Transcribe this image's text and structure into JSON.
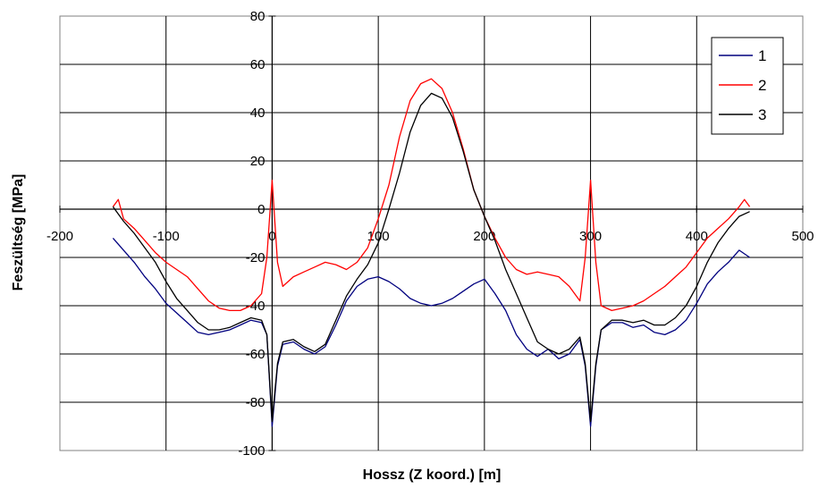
{
  "chart_data": {
    "type": "line",
    "xlabel": "Hossz (Z koord.) [m]",
    "ylabel": "Feszültség [MPa]",
    "xlim": [
      -200,
      500
    ],
    "ylim": [
      -100,
      80
    ],
    "xticks": [
      -200,
      -100,
      0,
      100,
      200,
      300,
      400,
      500
    ],
    "yticks": [
      80,
      60,
      40,
      20,
      0,
      -20,
      -40,
      -60,
      -80,
      -100
    ],
    "xtick_labels": [
      "-200",
      "-100",
      "0",
      "100",
      "200",
      "300",
      "400",
      "500"
    ],
    "ytick_labels": [
      "80",
      "60",
      "40",
      "20",
      "0",
      "-20",
      "-40",
      "-60",
      "-80",
      "-100"
    ],
    "grid": true,
    "legend_position": "top-right",
    "series": [
      {
        "name": "1",
        "color": "#00007f",
        "x": [
          -150,
          -140,
          -130,
          -120,
          -110,
          -100,
          -90,
          -80,
          -70,
          -60,
          -50,
          -40,
          -30,
          -20,
          -10,
          -5,
          0,
          5,
          10,
          20,
          30,
          40,
          50,
          60,
          70,
          80,
          90,
          100,
          110,
          120,
          130,
          140,
          150,
          160,
          170,
          180,
          190,
          200,
          210,
          220,
          230,
          240,
          250,
          260,
          270,
          280,
          290,
          295,
          300,
          305,
          310,
          320,
          330,
          340,
          350,
          360,
          370,
          380,
          390,
          400,
          410,
          420,
          430,
          440,
          450
        ],
        "y": [
          -12,
          -17,
          -22,
          -28,
          -33,
          -39,
          -43,
          -47,
          -51,
          -52,
          -51,
          -50,
          -48,
          -46,
          -47,
          -52,
          -90,
          -65,
          -56,
          -55,
          -58,
          -60,
          -57,
          -48,
          -38,
          -32,
          -29,
          -28,
          -30,
          -33,
          -37,
          -39,
          -40,
          -39,
          -37,
          -34,
          -31,
          -29,
          -35,
          -42,
          -52,
          -58,
          -61,
          -58,
          -62,
          -60,
          -54,
          -65,
          -90,
          -65,
          -50,
          -47,
          -47,
          -49,
          -48,
          -51,
          -52,
          -50,
          -46,
          -39,
          -31,
          -26,
          -22,
          -17,
          -20
        ]
      },
      {
        "name": "2",
        "color": "#ff0000",
        "x": [
          -150,
          -145,
          -140,
          -130,
          -120,
          -110,
          -100,
          -90,
          -80,
          -70,
          -60,
          -50,
          -40,
          -30,
          -20,
          -10,
          -5,
          0,
          5,
          10,
          20,
          30,
          40,
          50,
          60,
          70,
          80,
          90,
          100,
          110,
          120,
          130,
          140,
          150,
          160,
          170,
          180,
          190,
          200,
          210,
          220,
          230,
          240,
          250,
          260,
          270,
          280,
          290,
          295,
          300,
          305,
          310,
          320,
          330,
          340,
          350,
          360,
          370,
          380,
          390,
          400,
          410,
          420,
          430,
          440,
          445,
          450
        ],
        "y": [
          1,
          4,
          -4,
          -8,
          -13,
          -18,
          -22,
          -25,
          -28,
          -33,
          -38,
          -41,
          -42,
          -42,
          -40,
          -35,
          -20,
          12,
          -22,
          -32,
          -28,
          -26,
          -24,
          -22,
          -23,
          -25,
          -22,
          -16,
          -4,
          10,
          30,
          45,
          52,
          54,
          50,
          40,
          25,
          8,
          -3,
          -12,
          -20,
          -25,
          -27,
          -26,
          -27,
          -28,
          -32,
          -38,
          -20,
          12,
          -22,
          -40,
          -42,
          -41,
          -40,
          -38,
          -35,
          -32,
          -28,
          -24,
          -18,
          -12,
          -8,
          -4,
          1,
          4,
          1
        ]
      },
      {
        "name": "3",
        "color": "#000000",
        "x": [
          -150,
          -140,
          -130,
          -120,
          -110,
          -100,
          -90,
          -80,
          -70,
          -60,
          -50,
          -40,
          -30,
          -20,
          -10,
          -5,
          0,
          5,
          10,
          20,
          30,
          40,
          50,
          60,
          70,
          80,
          90,
          100,
          110,
          120,
          130,
          140,
          150,
          160,
          170,
          180,
          190,
          200,
          210,
          220,
          230,
          240,
          250,
          260,
          270,
          280,
          290,
          295,
          300,
          305,
          310,
          320,
          330,
          340,
          350,
          360,
          370,
          380,
          390,
          400,
          410,
          420,
          430,
          440,
          450
        ],
        "y": [
          1,
          -5,
          -10,
          -16,
          -22,
          -30,
          -37,
          -42,
          -47,
          -50,
          -50,
          -49,
          -47,
          -45,
          -46,
          -52,
          -88,
          -64,
          -55,
          -54,
          -57,
          -59,
          -56,
          -46,
          -36,
          -29,
          -23,
          -14,
          0,
          15,
          32,
          43,
          48,
          46,
          38,
          24,
          8,
          -3,
          -13,
          -25,
          -35,
          -45,
          -55,
          -58,
          -60,
          -58,
          -53,
          -64,
          -88,
          -64,
          -50,
          -46,
          -46,
          -47,
          -46,
          -48,
          -48,
          -45,
          -40,
          -32,
          -22,
          -14,
          -8,
          -3,
          -1
        ]
      }
    ]
  }
}
